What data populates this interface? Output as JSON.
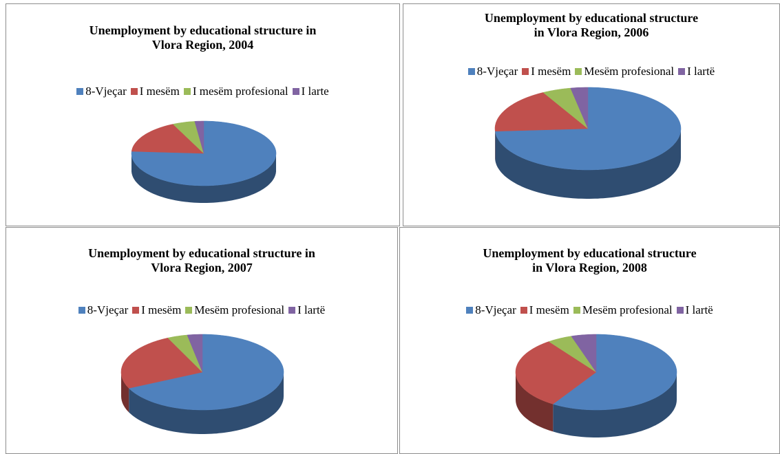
{
  "chart_data": [
    {
      "type": "pie",
      "title": [
        "Unemployment by educational structure in",
        "Vlora Region, 2004"
      ],
      "categories": [
        "8-Vjeçar",
        "I mesëm",
        "I mesëm profesional",
        "I larte"
      ],
      "values": [
        76,
        17,
        5,
        2
      ],
      "colors": [
        "#4f81bd",
        "#c0504d",
        "#9bbb59",
        "#8064a2"
      ]
    },
    {
      "type": "pie",
      "title": [
        "Unemployment by educational structure",
        "in Vlora Region, 2006"
      ],
      "categories": [
        "8-Vjeçar",
        "I mesëm",
        "Mesëm profesional",
        "I lartë"
      ],
      "values": [
        74,
        18,
        5,
        3
      ],
      "colors": [
        "#4f81bd",
        "#c0504d",
        "#9bbb59",
        "#8064a2"
      ]
    },
    {
      "type": "pie",
      "title": [
        "Unemployment by educational structure in",
        "Vlora Region, 2007"
      ],
      "categories": [
        "8-Vjeçar",
        "I mesëm",
        "Mesëm profesional",
        "I lartë"
      ],
      "values": [
        68,
        25,
        4,
        3
      ],
      "colors": [
        "#4f81bd",
        "#c0504d",
        "#9bbb59",
        "#8064a2"
      ]
    },
    {
      "type": "pie",
      "title": [
        "Unemployment by educational structure",
        "in Vlora Region, 2008"
      ],
      "categories": [
        "8-Vjeçar",
        "I mesëm",
        "Mesëm profesional",
        "I lartë"
      ],
      "values": [
        59,
        31,
        5,
        5
      ],
      "colors": [
        "#4f81bd",
        "#c0504d",
        "#9bbb59",
        "#8064a2"
      ]
    }
  ]
}
